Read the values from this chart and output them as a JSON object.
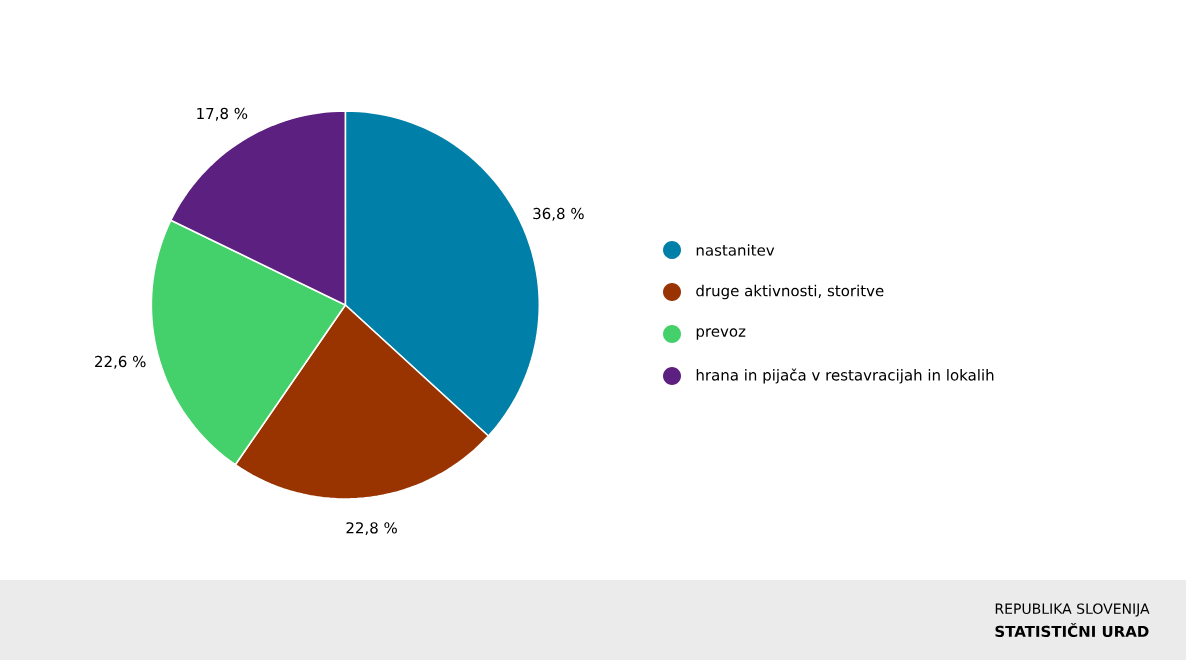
{
  "chart_data": {
    "type": "pie",
    "categories": [
      "nastanitev",
      "druge aktivnosti, storitve",
      "prevoz",
      "hrana in pijača v restavracijah in lokalih"
    ],
    "values": [
      36.8,
      22.8,
      22.6,
      17.8
    ],
    "colors": [
      "#0080a8",
      "#993300",
      "#44d06a",
      "#5c2080"
    ],
    "value_labels": [
      "36,8 %",
      "22,8 %",
      "22,6 %",
      "17,8 %"
    ],
    "legend": "right",
    "annotations": [
      "REPUBLIKA SLOVENIJA",
      "STATISTIČNI URAD"
    ]
  }
}
